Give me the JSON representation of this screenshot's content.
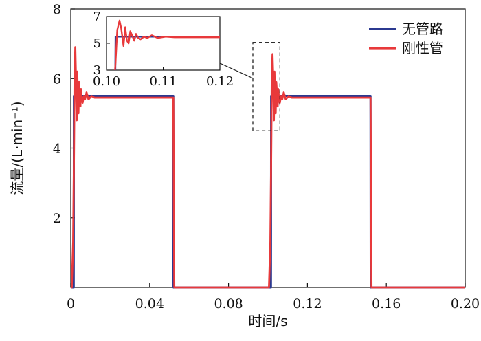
{
  "chart_data": {
    "type": "line",
    "title": "",
    "xlabel": "时间/s",
    "ylabel": "流量/(L·min⁻¹)",
    "xlim": [
      0,
      0.2
    ],
    "ylim": [
      0,
      8
    ],
    "xticks": [
      0,
      0.04,
      0.08,
      0.12,
      0.16,
      0.2
    ],
    "xtick_labels": [
      "0",
      "0.04",
      "0.08",
      "0.12",
      "0.16",
      "0.20"
    ],
    "yticks": [
      2,
      4,
      6,
      8
    ],
    "ytick_labels": [
      "2",
      "4",
      "6",
      "8"
    ],
    "legend_position": "top-right",
    "grid": false,
    "series": [
      {
        "name": "无管路",
        "color": "#2b3990",
        "x": [
          0,
          0.0015,
          0.0016,
          0.052,
          0.0521,
          0.1015,
          0.1016,
          0.152,
          0.1521,
          0.2
        ],
        "y": [
          0,
          0,
          5.5,
          5.5,
          0,
          0,
          5.5,
          5.5,
          0,
          0
        ]
      },
      {
        "name": "刚性管",
        "color": "#e8393b",
        "x": [
          0,
          0.0005,
          0.0012,
          0.0016,
          0.0019,
          0.0023,
          0.0026,
          0.003,
          0.0033,
          0.0036,
          0.0039,
          0.0042,
          0.0046,
          0.0049,
          0.0052,
          0.0056,
          0.006,
          0.0066,
          0.0072,
          0.008,
          0.009,
          0.0105,
          0.012,
          0.015,
          0.02,
          0.025,
          0.03,
          0.035,
          0.04,
          0.045,
          0.05,
          0.052,
          0.0525,
          0.06,
          0.07,
          0.08,
          0.09,
          0.1,
          0.1005,
          0.1012,
          0.1016,
          0.1019,
          0.1023,
          0.1026,
          0.103,
          0.1033,
          0.1036,
          0.1039,
          0.1042,
          0.1046,
          0.1049,
          0.1052,
          0.1056,
          0.106,
          0.1066,
          0.1072,
          0.108,
          0.109,
          0.1105,
          0.112,
          0.115,
          0.12,
          0.125,
          0.13,
          0.135,
          0.14,
          0.145,
          0.15,
          0.152,
          0.1525,
          0.16,
          0.17,
          0.18,
          0.19,
          0.2
        ],
        "y": [
          0,
          0,
          1.3,
          3.6,
          6.0,
          6.9,
          6.1,
          4.8,
          6.2,
          5.2,
          5.0,
          5.9,
          5.5,
          5.2,
          5.7,
          5.4,
          5.3,
          5.5,
          5.4,
          5.6,
          5.4,
          5.5,
          5.45,
          5.45,
          5.45,
          5.45,
          5.45,
          5.45,
          5.45,
          5.45,
          5.45,
          5.45,
          0,
          0,
          0,
          0,
          0,
          0,
          0,
          1.3,
          3.6,
          6.0,
          6.7,
          6.1,
          4.8,
          6.2,
          5.2,
          5.0,
          5.9,
          5.5,
          5.2,
          5.7,
          5.4,
          5.3,
          5.5,
          5.4,
          5.6,
          5.4,
          5.5,
          5.45,
          5.45,
          5.45,
          5.45,
          5.45,
          5.45,
          5.45,
          5.45,
          5.45,
          5.45,
          0,
          0,
          0,
          0,
          0,
          0
        ]
      }
    ],
    "inset": {
      "xlim": [
        0.1,
        0.12
      ],
      "ylim": [
        3,
        7
      ],
      "xticks": [
        0.1,
        0.11,
        0.12
      ],
      "xtick_labels": [
        "0.10",
        "0.11",
        "0.12"
      ],
      "yticks": [
        3,
        5,
        7
      ],
      "ytick_labels": [
        "3",
        "5",
        "7"
      ],
      "zoom_region": {
        "x": [
          0.1,
          0.105
        ],
        "y": [
          4.5,
          6.8
        ]
      }
    }
  }
}
